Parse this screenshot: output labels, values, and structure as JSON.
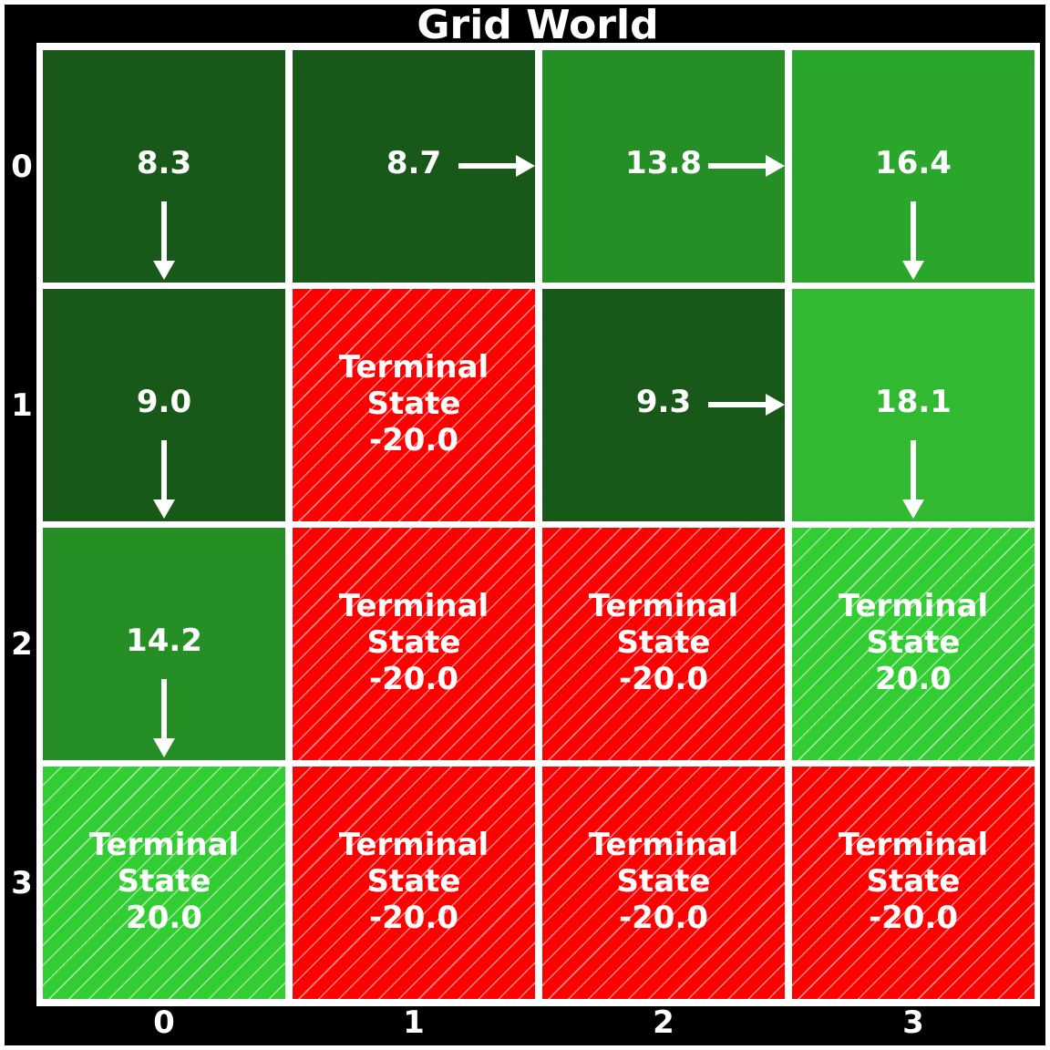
{
  "title": "Grid World",
  "row_labels": [
    "0",
    "1",
    "2",
    "3"
  ],
  "col_labels": [
    "0",
    "1",
    "2",
    "3"
  ],
  "colors": {
    "background": "#000000",
    "grid_lines": "#ffffff",
    "terminal_bad": "#ff0000",
    "terminal_good": "#32cd32",
    "text": "#ffffff"
  },
  "cells": [
    {
      "row": 0,
      "col": 0,
      "value": "8.3",
      "arrow": "down",
      "color": "#185818"
    },
    {
      "row": 0,
      "col": 1,
      "value": "8.7",
      "arrow": "right",
      "color": "#185818"
    },
    {
      "row": 0,
      "col": 2,
      "value": "13.8",
      "arrow": "right",
      "color": "#258f25"
    },
    {
      "row": 0,
      "col": 3,
      "value": "16.4",
      "arrow": "down",
      "color": "#2aa62a"
    },
    {
      "row": 1,
      "col": 0,
      "value": "9.0",
      "arrow": "down",
      "color": "#185818"
    },
    {
      "row": 1,
      "col": 1,
      "terminal": true,
      "line1": "Terminal",
      "line2": "State",
      "value": "-20.0",
      "color": "#ff0000"
    },
    {
      "row": 1,
      "col": 2,
      "value": "9.3",
      "arrow": "right",
      "color": "#185818"
    },
    {
      "row": 1,
      "col": 3,
      "value": "18.1",
      "arrow": "down",
      "color": "#31b931"
    },
    {
      "row": 2,
      "col": 0,
      "value": "14.2",
      "arrow": "down",
      "color": "#258f25"
    },
    {
      "row": 2,
      "col": 1,
      "terminal": true,
      "line1": "Terminal",
      "line2": "State",
      "value": "-20.0",
      "color": "#ff0000"
    },
    {
      "row": 2,
      "col": 2,
      "terminal": true,
      "line1": "Terminal",
      "line2": "State",
      "value": "-20.0",
      "color": "#ff0000"
    },
    {
      "row": 2,
      "col": 3,
      "terminal": true,
      "line1": "Terminal",
      "line2": "State",
      "value": "20.0",
      "color": "#32cd32"
    },
    {
      "row": 3,
      "col": 0,
      "terminal": true,
      "line1": "Terminal",
      "line2": "State",
      "value": "20.0",
      "color": "#32cd32"
    },
    {
      "row": 3,
      "col": 1,
      "terminal": true,
      "line1": "Terminal",
      "line2": "State",
      "value": "-20.0",
      "color": "#ff0000"
    },
    {
      "row": 3,
      "col": 2,
      "terminal": true,
      "line1": "Terminal",
      "line2": "State",
      "value": "-20.0",
      "color": "#ff0000"
    },
    {
      "row": 3,
      "col": 3,
      "terminal": true,
      "line1": "Terminal",
      "line2": "State",
      "value": "-20.0",
      "color": "#ff0000"
    }
  ]
}
